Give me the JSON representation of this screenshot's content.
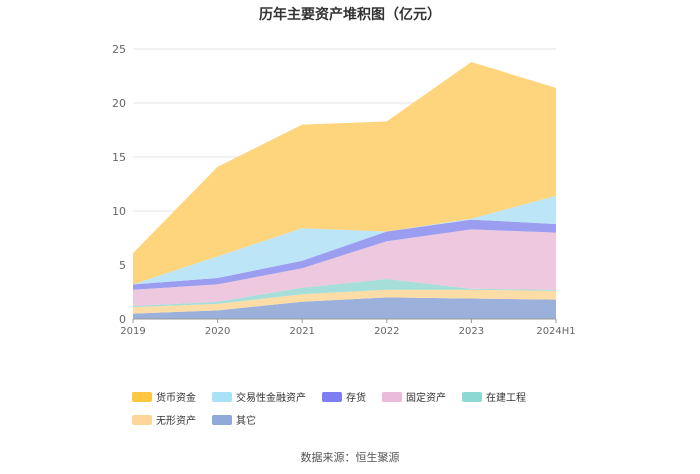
{
  "chart_data": {
    "type": "area",
    "stacked": true,
    "title": "历年主要资产堆积图（亿元）",
    "categories": [
      "2019",
      "2020",
      "2021",
      "2022",
      "2023",
      "2024H1"
    ],
    "ylim": [
      0,
      25
    ],
    "yticks": [
      0,
      5,
      10,
      15,
      20,
      25
    ],
    "grid": true,
    "legend_position": "bottom",
    "series": [
      {
        "name": "其它",
        "color": "#9BB1DC",
        "values": [
          0.5,
          0.8,
          1.6,
          2.0,
          1.9,
          1.8
        ]
      },
      {
        "name": "无形资产",
        "color": "#FEDCA6",
        "values": [
          0.6,
          0.6,
          0.7,
          0.7,
          0.8,
          0.8
        ]
      },
      {
        "name": "在建工程",
        "color": "#A6DEDA",
        "values": [
          0.1,
          0.2,
          0.6,
          1.0,
          0.1,
          0.1
        ]
      },
      {
        "name": "固定资产",
        "color": "#EDC8DF",
        "values": [
          1.5,
          1.6,
          1.8,
          3.5,
          5.5,
          5.3
        ]
      },
      {
        "name": "存货",
        "color": "#9B9EF0",
        "values": [
          0.5,
          0.6,
          0.7,
          0.9,
          0.9,
          0.8
        ]
      },
      {
        "name": "交易性金融资产",
        "color": "#BCE6F8",
        "values": [
          0.0,
          2.0,
          3.0,
          0.0,
          0.1,
          2.6
        ]
      },
      {
        "name": "货币资金",
        "color": "#FED57D",
        "values": [
          2.9,
          8.3,
          9.6,
          10.2,
          14.5,
          10.0
        ]
      }
    ]
  },
  "legend": [
    {
      "label": "货币资金",
      "color": "#FFC63F"
    },
    {
      "label": "交易性金融资产",
      "color": "#A9E1F8"
    },
    {
      "label": "存货",
      "color": "#7D7FF0"
    },
    {
      "label": "固定资产",
      "color": "#EBB9D9"
    },
    {
      "label": "在建工程",
      "color": "#8ED8D4"
    },
    {
      "label": "无形资产",
      "color": "#FFD59A"
    },
    {
      "label": "其它",
      "color": "#8EA9DA"
    }
  ],
  "source": "数据来源：恒生聚源"
}
